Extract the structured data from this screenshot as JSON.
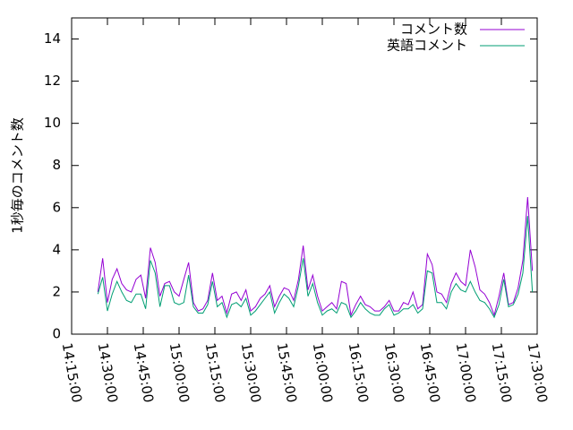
{
  "chart_data": {
    "type": "line",
    "ylabel": "1秒毎のコメント数",
    "x": [
      "14:26:00",
      "14:28:00",
      "14:30:00",
      "14:32:00",
      "14:34:00",
      "14:36:00",
      "14:38:00",
      "14:40:00",
      "14:42:00",
      "14:44:00",
      "14:46:00",
      "14:48:00",
      "14:50:00",
      "14:52:00",
      "14:54:00",
      "14:56:00",
      "14:58:00",
      "15:00:00",
      "15:02:00",
      "15:04:00",
      "15:06:00",
      "15:08:00",
      "15:10:00",
      "15:12:00",
      "15:14:00",
      "15:16:00",
      "15:18:00",
      "15:20:00",
      "15:22:00",
      "15:24:00",
      "15:26:00",
      "15:28:00",
      "15:30:00",
      "15:32:00",
      "15:34:00",
      "15:36:00",
      "15:38:00",
      "15:40:00",
      "15:42:00",
      "15:44:00",
      "15:46:00",
      "15:48:00",
      "15:50:00",
      "15:52:00",
      "15:54:00",
      "15:56:00",
      "15:58:00",
      "16:00:00",
      "16:02:00",
      "16:04:00",
      "16:06:00",
      "16:08:00",
      "16:10:00",
      "16:12:00",
      "16:14:00",
      "16:16:00",
      "16:18:00",
      "16:20:00",
      "16:22:00",
      "16:24:00",
      "16:26:00",
      "16:28:00",
      "16:30:00",
      "16:32:00",
      "16:34:00",
      "16:36:00",
      "16:38:00",
      "16:40:00",
      "16:42:00",
      "16:44:00",
      "16:46:00",
      "16:48:00",
      "16:50:00",
      "16:52:00",
      "16:54:00",
      "16:56:00",
      "16:58:00",
      "17:00:00",
      "17:02:00",
      "17:04:00",
      "17:06:00",
      "17:08:00",
      "17:10:00",
      "17:12:00",
      "17:14:00",
      "17:16:00",
      "17:18:00",
      "17:20:00",
      "17:22:00",
      "17:24:00",
      "17:26:00",
      "17:28:00"
    ],
    "series": [
      {
        "name": "コメント数",
        "color": "#9400d3",
        "values": [
          2.0,
          3.6,
          1.5,
          2.6,
          3.1,
          2.4,
          2.1,
          2.0,
          2.6,
          2.8,
          1.7,
          4.1,
          3.4,
          1.8,
          2.4,
          2.5,
          2.0,
          1.8,
          2.6,
          3.4,
          1.5,
          1.1,
          1.2,
          1.6,
          2.9,
          1.6,
          1.8,
          1.0,
          1.9,
          2.0,
          1.6,
          2.1,
          1.1,
          1.3,
          1.7,
          1.9,
          2.3,
          1.3,
          1.8,
          2.2,
          2.1,
          1.6,
          2.6,
          4.2,
          2.1,
          2.8,
          1.8,
          1.1,
          1.3,
          1.5,
          1.2,
          2.5,
          2.4,
          0.9,
          1.4,
          1.8,
          1.4,
          1.3,
          1.1,
          1.1,
          1.3,
          1.6,
          1.1,
          1.1,
          1.5,
          1.4,
          2.0,
          1.2,
          1.4,
          3.8,
          3.3,
          2.0,
          1.9,
          1.5,
          2.4,
          2.9,
          2.5,
          2.3,
          4.0,
          3.2,
          2.1,
          1.9,
          1.5,
          0.9,
          1.8,
          2.9,
          1.4,
          1.5,
          2.2,
          3.5,
          6.5,
          3.0
        ]
      },
      {
        "name": "英語コメント",
        "color": "#009e73",
        "values": [
          1.9,
          2.7,
          1.1,
          1.9,
          2.5,
          2.0,
          1.6,
          1.5,
          1.9,
          1.9,
          1.2,
          3.5,
          2.9,
          1.3,
          2.3,
          2.3,
          1.5,
          1.4,
          1.5,
          2.8,
          1.3,
          1.0,
          1.0,
          1.4,
          2.5,
          1.3,
          1.5,
          0.8,
          1.4,
          1.5,
          1.3,
          1.7,
          0.9,
          1.1,
          1.4,
          1.7,
          2.0,
          1.0,
          1.5,
          1.9,
          1.7,
          1.3,
          2.3,
          3.6,
          1.8,
          2.4,
          1.5,
          0.9,
          1.1,
          1.2,
          1.0,
          1.5,
          1.4,
          0.8,
          1.1,
          1.5,
          1.2,
          1.0,
          0.9,
          0.9,
          1.2,
          1.4,
          0.9,
          1.0,
          1.2,
          1.2,
          1.4,
          1.0,
          1.2,
          3.0,
          2.9,
          1.5,
          1.5,
          1.2,
          2.0,
          2.4,
          2.1,
          2.0,
          2.5,
          2.0,
          1.6,
          1.5,
          1.2,
          0.8,
          1.4,
          2.6,
          1.3,
          1.4,
          1.9,
          2.9,
          5.6,
          2.0
        ]
      }
    ],
    "xlim": [
      "14:15:00",
      "17:30:00"
    ],
    "xticks": [
      "14:15:00",
      "14:30:00",
      "14:45:00",
      "15:00:00",
      "15:15:00",
      "15:30:00",
      "15:45:00",
      "16:00:00",
      "16:15:00",
      "16:30:00",
      "16:45:00",
      "17:00:00",
      "17:15:00",
      "17:30:00"
    ],
    "ylim": [
      0,
      15
    ],
    "yticks": [
      0,
      2,
      4,
      6,
      8,
      10,
      12,
      14
    ],
    "legend": "top-right"
  }
}
